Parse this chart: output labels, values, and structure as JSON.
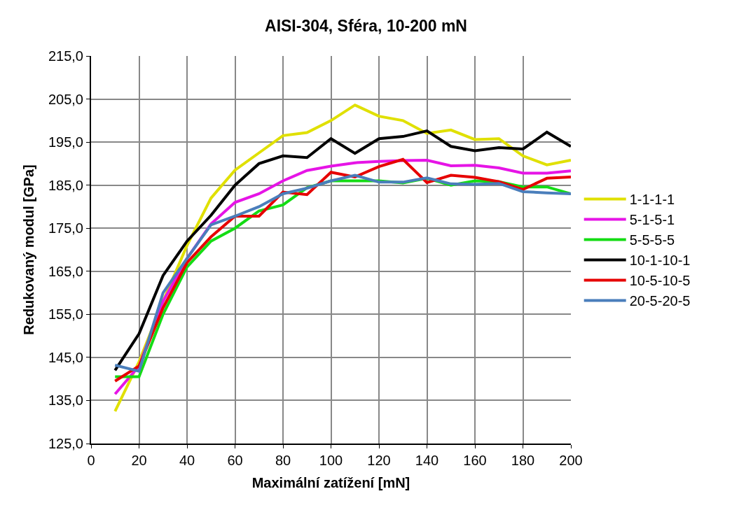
{
  "chart_data": {
    "type": "line",
    "title": "AISI-304, Sféra, 10-200 mN",
    "xlabel": "Maximální zatížení [mN]",
    "ylabel": "Redukovaný modul [GPa]",
    "x": [
      10,
      20,
      30,
      40,
      50,
      60,
      70,
      80,
      90,
      100,
      110,
      120,
      130,
      140,
      150,
      160,
      170,
      180,
      190,
      200
    ],
    "series": [
      {
        "name": "1-1-1-1",
        "color": "#e0e000",
        "values": [
          132.5,
          144,
          158,
          171,
          182,
          188.5,
          192.5,
          196.5,
          197.2,
          200,
          203.6,
          201,
          200,
          197,
          197.8,
          195.6,
          195.8,
          191.8,
          189.7,
          190.8
        ]
      },
      {
        "name": "5-1-5-1",
        "color": "#e614e6",
        "values": [
          136.5,
          143,
          158,
          168,
          176,
          181,
          183,
          186,
          188.4,
          189.4,
          190.2,
          190.5,
          190.7,
          190.8,
          189.5,
          189.6,
          189,
          187.8,
          187.8,
          188.3
        ]
      },
      {
        "name": "5-5-5-5",
        "color": "#14dc14",
        "values": [
          140.5,
          140.5,
          155,
          166,
          172,
          175,
          179,
          180.4,
          184.4,
          186,
          186,
          186,
          185.5,
          186.6,
          185,
          186,
          185.8,
          184.6,
          184.6,
          183
        ]
      },
      {
        "name": "10-1-10-1",
        "color": "#000000",
        "values": [
          142,
          150.5,
          164,
          172,
          178,
          185,
          190,
          191.8,
          191.4,
          195.8,
          192.4,
          195.8,
          196.3,
          197.6,
          194,
          193,
          193.7,
          193.4,
          197.3,
          194
        ]
      },
      {
        "name": "10-5-10-5",
        "color": "#e60000",
        "values": [
          139.5,
          143,
          156.5,
          167,
          173,
          177.8,
          177.8,
          183.4,
          182.8,
          188,
          186.9,
          189.3,
          191,
          185.6,
          187.3,
          186.8,
          185.8,
          184,
          186.6,
          186.9
        ]
      },
      {
        "name": "20-5-20-5",
        "color": "#4a7ebb",
        "values": [
          143.2,
          141.8,
          160,
          168,
          175.8,
          177.8,
          180,
          183,
          184.3,
          186,
          187.3,
          185.7,
          185.7,
          186.7,
          185.3,
          185.2,
          185.4,
          183.5,
          183.2,
          183
        ]
      }
    ],
    "xlim": [
      0,
      200
    ],
    "xticks": [
      0,
      20,
      40,
      60,
      80,
      100,
      120,
      140,
      160,
      180,
      200
    ],
    "ylim": [
      125,
      215
    ],
    "yticks": [
      {
        "value": 125,
        "label": "125,0"
      },
      {
        "value": 135,
        "label": "135,0"
      },
      {
        "value": 145,
        "label": "145,0"
      },
      {
        "value": 155,
        "label": "155,0"
      },
      {
        "value": 165,
        "label": "165,0"
      },
      {
        "value": 175,
        "label": "175,0"
      },
      {
        "value": 185,
        "label": "185,0"
      },
      {
        "value": 195,
        "label": "195,0"
      },
      {
        "value": 205,
        "label": "205,0"
      },
      {
        "value": 215,
        "label": "215,0"
      }
    ],
    "grid": true,
    "legend": "right",
    "line_style": "solid",
    "marker": "none"
  }
}
